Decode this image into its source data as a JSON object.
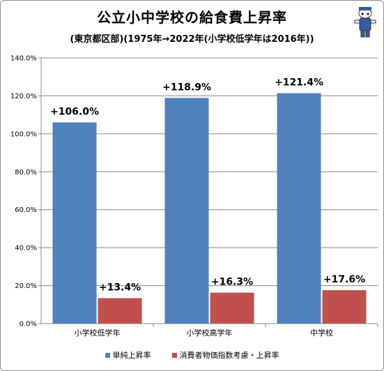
{
  "title": "公立小中学校の給食費上昇率",
  "subtitle": "(東京都区部)(1975年→2022年(小学校低学年は2016年))",
  "chart_data": {
    "type": "bar",
    "categories": [
      "小学校低学年",
      "小学校高学年",
      "中学校"
    ],
    "series": [
      {
        "name": "単純上昇率",
        "values": [
          106.0,
          118.9,
          121.4
        ],
        "labels": [
          "+106.0%",
          "+118.9%",
          "+121.4%"
        ],
        "color": "#4f81bd"
      },
      {
        "name": "消費者物価指数考慮・上昇率",
        "values": [
          13.4,
          16.3,
          17.6
        ],
        "labels": [
          "+13.4%",
          "+16.3%",
          "+17.6%"
        ],
        "color": "#c0504d"
      }
    ],
    "ylim": [
      0,
      140
    ],
    "yticks": [
      "0.0%",
      "20.0%",
      "40.0%",
      "60.0%",
      "80.0%",
      "100.0%",
      "120.0%",
      "140.0%"
    ],
    "grid": true,
    "legend_position": "bottom"
  }
}
